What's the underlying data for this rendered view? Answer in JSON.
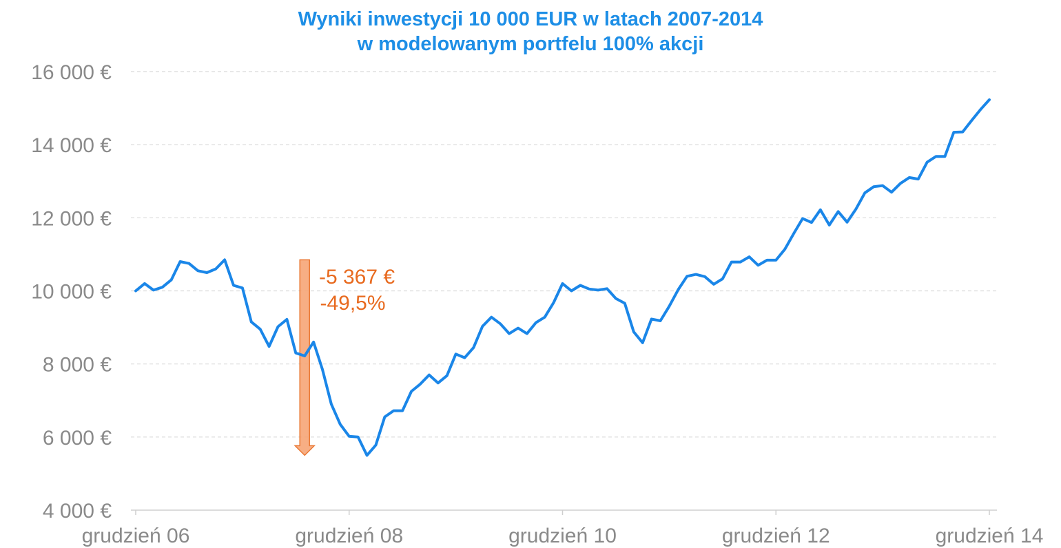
{
  "chart_data": {
    "type": "line",
    "title": "Wyniki inwestycji 10 000 EUR w latach 2007-2014",
    "subtitle": "w modelowanym portfelu 100% akcji",
    "xlabel": "",
    "ylabel": "",
    "ylim": [
      4000,
      16000
    ],
    "yticks": [
      4000,
      6000,
      8000,
      10000,
      12000,
      14000,
      16000
    ],
    "ytick_labels": [
      "4 000 €",
      "6 000 €",
      "8 000 €",
      "10 000 €",
      "12 000 €",
      "14 000 €",
      "16 000 €"
    ],
    "xtick_labels": [
      "grudzień 06",
      "grudzień 08",
      "grudzień 10",
      "grudzień 12",
      "grudzień 14"
    ],
    "xtick_months": [
      0,
      24,
      48,
      72,
      96
    ],
    "grid": "horizontal-dashed",
    "series": [
      {
        "color": "#1a86e8",
        "values": [
          10000,
          10200,
          10020,
          10100,
          10300,
          10800,
          10750,
          10550,
          10500,
          10600,
          10850,
          10150,
          10080,
          9150,
          8950,
          8480,
          9020,
          9220,
          8300,
          8220,
          8600,
          7850,
          6900,
          6350,
          6020,
          6000,
          5500,
          5780,
          6550,
          6720,
          6720,
          7250,
          7450,
          7700,
          7480,
          7680,
          8270,
          8170,
          8450,
          9030,
          9280,
          9100,
          8830,
          8980,
          8830,
          9130,
          9280,
          9680,
          10200,
          10000,
          10150,
          10050,
          10020,
          10060,
          9790,
          9660,
          8880,
          8580,
          9230,
          9180,
          9580,
          10030,
          10400,
          10450,
          10390,
          10180,
          10330,
          10790,
          10790,
          10930,
          10700,
          10840,
          10840,
          11140,
          11570,
          11980,
          11870,
          12220,
          11800,
          12170,
          11880,
          12240,
          12680,
          12850,
          12880,
          12700,
          12940,
          13100,
          13060,
          13520,
          13680,
          13680,
          14340,
          14350,
          14660,
          14960,
          15230
        ]
      }
    ],
    "annotation": {
      "line1": "-5 367 €",
      "line2": "-49,5%",
      "color": "#e86a1f",
      "fill": "#f7a677",
      "from_value": 10850,
      "to_value": 5500,
      "at_month": 19
    }
  }
}
